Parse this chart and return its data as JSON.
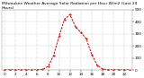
{
  "title": "Milwaukee Weather Average Solar Radiation per Hour W/m2 (Last 24 Hours)",
  "hours": [
    0,
    1,
    2,
    3,
    4,
    5,
    6,
    7,
    8,
    9,
    10,
    11,
    12,
    13,
    14,
    15,
    16,
    17,
    18,
    19,
    20,
    21,
    22,
    23
  ],
  "values": [
    2,
    2,
    2,
    2,
    2,
    2,
    2,
    5,
    30,
    120,
    280,
    420,
    460,
    360,
    310,
    260,
    130,
    40,
    8,
    3,
    2,
    2,
    2,
    2
  ],
  "line_color": "#cc0000",
  "bg_color": "#ffffff",
  "grid_color": "#999999",
  "text_color": "#000000",
  "ylim": [
    0,
    500
  ],
  "yticks": [
    0,
    100,
    200,
    300,
    400,
    500
  ],
  "xticks": [
    0,
    2,
    4,
    6,
    8,
    10,
    12,
    14,
    16,
    18,
    20,
    22
  ],
  "xlabel_fontsize": 3.0,
  "ylabel_fontsize": 3.0,
  "title_fontsize": 3.2
}
